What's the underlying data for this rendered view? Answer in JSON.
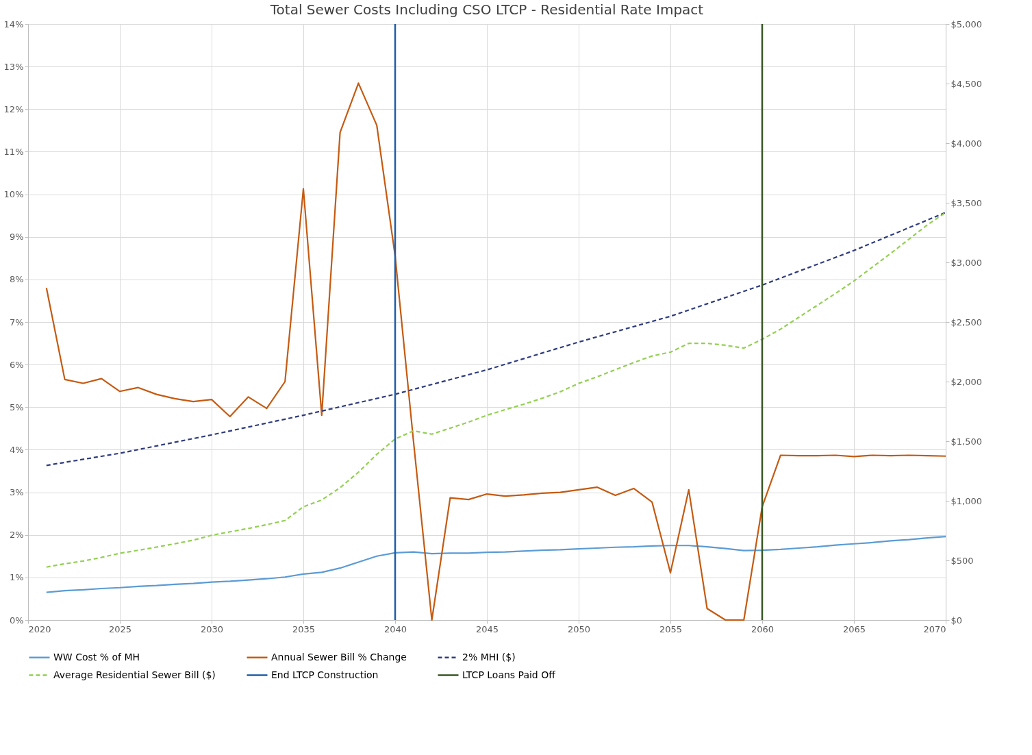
{
  "chart_data": {
    "type": "line",
    "title": "Total Sewer Costs Including CSO LTCP - Residential Rate Impact",
    "xlim": [
      2020,
      2070
    ],
    "xticks": [
      2020,
      2025,
      2030,
      2035,
      2040,
      2045,
      2050,
      2055,
      2060,
      2065,
      2070
    ],
    "ylim": [
      0,
      14
    ],
    "yticks": [
      {
        "value": 0,
        "label": "0%"
      },
      {
        "value": 1,
        "label": "1%"
      },
      {
        "value": 2,
        "label": "2%"
      },
      {
        "value": 3,
        "label": "3%"
      },
      {
        "value": 4,
        "label": "4%"
      },
      {
        "value": 5,
        "label": "5%"
      },
      {
        "value": 6,
        "label": "6%"
      },
      {
        "value": 7,
        "label": "7%"
      },
      {
        "value": 8,
        "label": "8%"
      },
      {
        "value": 9,
        "label": "9%"
      },
      {
        "value": 10,
        "label": "10%"
      },
      {
        "value": 11,
        "label": "11%"
      },
      {
        "value": 12,
        "label": "12%"
      },
      {
        "value": 13,
        "label": "13%"
      },
      {
        "value": 14,
        "label": "14%"
      }
    ],
    "y2lim": [
      0,
      5000
    ],
    "y2ticks": [
      {
        "value": 0,
        "label": "$0"
      },
      {
        "value": 500,
        "label": "$500"
      },
      {
        "value": 1000,
        "label": "$1,000"
      },
      {
        "value": 1500,
        "label": "$1,500"
      },
      {
        "value": 2000,
        "label": "$2,000"
      },
      {
        "value": 2500,
        "label": "$2,500"
      },
      {
        "value": 3000,
        "label": "$3,000"
      },
      {
        "value": 3500,
        "label": "$3,500"
      },
      {
        "value": 4000,
        "label": "$4,000"
      },
      {
        "value": 4500,
        "label": "$4,500"
      },
      {
        "value": 5000,
        "label": "$5,000"
      }
    ],
    "x": [
      2021,
      2022,
      2023,
      2024,
      2025,
      2026,
      2027,
      2028,
      2029,
      2030,
      2031,
      2032,
      2033,
      2034,
      2035,
      2036,
      2037,
      2038,
      2039,
      2040,
      2041,
      2042,
      2043,
      2044,
      2045,
      2046,
      2047,
      2048,
      2049,
      2050,
      2051,
      2052,
      2053,
      2054,
      2055,
      2056,
      2057,
      2058,
      2059,
      2060,
      2061,
      2062,
      2063,
      2064,
      2065,
      2066,
      2067,
      2068,
      2069,
      2070
    ],
    "series": [
      {
        "name": "WW Cost % of MH",
        "color": "#5b9bd5",
        "line_style": "solid",
        "values": [
          0.65,
          0.69,
          0.71,
          0.74,
          0.76,
          0.79,
          0.81,
          0.84,
          0.86,
          0.89,
          0.91,
          0.94,
          0.97,
          1.01,
          1.08,
          1.12,
          1.22,
          1.36,
          1.5,
          1.58,
          1.6,
          1.56,
          1.57,
          1.57,
          1.59,
          1.6,
          1.62,
          1.64,
          1.65,
          1.67,
          1.69,
          1.71,
          1.72,
          1.74,
          1.75,
          1.75,
          1.72,
          1.68,
          1.63,
          1.64,
          1.66,
          1.69,
          1.72,
          1.76,
          1.79,
          1.82,
          1.86,
          1.89,
          1.93,
          1.96
        ]
      },
      {
        "name": "Annual Sewer Bill % Change",
        "color": "#c55a11",
        "line_style": "solid",
        "values": [
          7.8,
          5.65,
          5.56,
          5.67,
          5.37,
          5.46,
          5.3,
          5.2,
          5.13,
          5.18,
          4.78,
          5.24,
          4.97,
          5.6,
          10.13,
          4.81,
          11.45,
          12.61,
          11.62,
          8.55,
          4.2,
          0,
          2.87,
          2.83,
          2.96,
          2.91,
          2.94,
          2.98,
          3.0,
          3.06,
          3.12,
          2.93,
          3.09,
          2.77,
          1.11,
          3.06,
          0.27,
          0,
          0,
          2.66,
          3.87,
          3.86,
          3.86,
          3.87,
          3.84,
          3.87,
          3.86,
          3.87,
          3.86,
          3.85
        ]
      },
      {
        "name": "2% MHI ($)",
        "color": "#2e3b7e",
        "line_style": "dashed",
        "axis": "y2",
        "x": [
          2021,
          2025,
          2030,
          2035,
          2040,
          2045,
          2050,
          2055,
          2060,
          2065,
          2070
        ],
        "values": [
          1297,
          1399,
          1553,
          1718,
          1894,
          2099,
          2332,
          2548,
          2810,
          3100,
          3419
        ]
      },
      {
        "name": "Average Residential Sewer Bill ($)",
        "color": "#92d050",
        "line_style": "dashed",
        "axis": "y2",
        "values": [
          444,
          472,
          495,
          525,
          560,
          585,
          612,
          640,
          670,
          711,
          740,
          768,
          800,
          835,
          950,
          1007,
          1110,
          1240,
          1390,
          1519,
          1587,
          1559,
          1610,
          1660,
          1718,
          1765,
          1810,
          1860,
          1915,
          1985,
          2040,
          2100,
          2160,
          2215,
          2247,
          2321,
          2321,
          2305,
          2281,
          2355,
          2440,
          2540,
          2640,
          2740,
          2844,
          2960,
          3075,
          3195,
          3315,
          3419
        ]
      }
    ],
    "ref_lines": [
      {
        "axis": "x",
        "value": 2040,
        "label": "End LTCP Construction",
        "color": "#1f5fa8"
      },
      {
        "axis": "x",
        "value": 2060,
        "label": "LTCP Loans Paid Off",
        "color": "#375623"
      }
    ],
    "grid": true,
    "legend": "bottom",
    "marker": "none"
  }
}
